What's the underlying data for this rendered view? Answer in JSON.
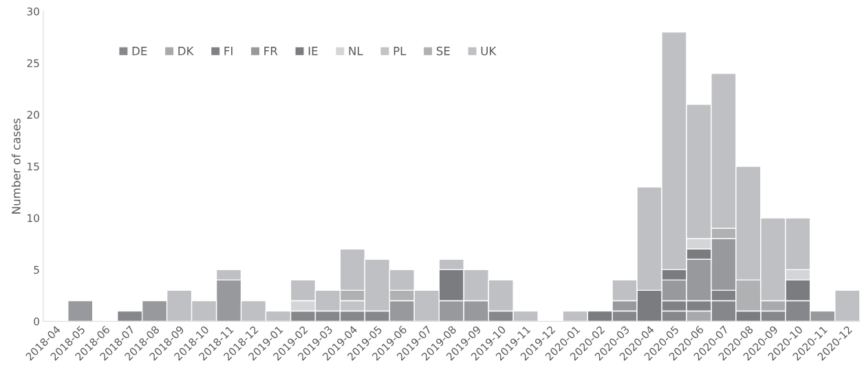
{
  "chart_data": {
    "type": "bar",
    "stacked": true,
    "ylabel": "Number of cases",
    "categories": [
      "2018-04",
      "2018-05",
      "2018-06",
      "2018-07",
      "2018-08",
      "2018-09",
      "2018-10",
      "2018-11",
      "2018-12",
      "2019-01",
      "2019-02",
      "2019-03",
      "2019-04",
      "2019-05",
      "2019-06",
      "2019-07",
      "2019-08",
      "2019-09",
      "2019-10",
      "2019-11",
      "2019-12",
      "2020-01",
      "2020-02",
      "2020-03",
      "2020-04",
      "2020-05",
      "2020-06",
      "2020-07",
      "2020-08",
      "2020-09",
      "2020-10",
      "2020-11",
      "2020-12"
    ],
    "series": [
      {
        "name": "DE",
        "color": "#86878a",
        "values": [
          0,
          0,
          0,
          1,
          0,
          0,
          0,
          0,
          0,
          0,
          1,
          1,
          1,
          1,
          0,
          0,
          0,
          0,
          1,
          0,
          0,
          0,
          0,
          1,
          0,
          1,
          0,
          2,
          0,
          1,
          2,
          0,
          0
        ]
      },
      {
        "name": "DK",
        "color": "#a8a9ab",
        "values": [
          0,
          0,
          0,
          0,
          0,
          0,
          0,
          0,
          0,
          0,
          0,
          0,
          0,
          0,
          0,
          0,
          0,
          0,
          0,
          0,
          0,
          0,
          0,
          0,
          0,
          0,
          1,
          0,
          0,
          1,
          0,
          0,
          0
        ]
      },
      {
        "name": "FI",
        "color": "#808184",
        "values": [
          0,
          0,
          0,
          0,
          0,
          0,
          0,
          0,
          0,
          0,
          0,
          0,
          0,
          0,
          0,
          0,
          0,
          0,
          0,
          0,
          0,
          0,
          0,
          0,
          0,
          1,
          1,
          1,
          0,
          0,
          0,
          0,
          0
        ]
      },
      {
        "name": "FR",
        "color": "#98999c",
        "values": [
          0,
          2,
          0,
          0,
          2,
          0,
          0,
          4,
          0,
          0,
          0,
          0,
          0,
          0,
          2,
          0,
          2,
          2,
          0,
          0,
          0,
          0,
          0,
          1,
          0,
          2,
          4,
          5,
          0,
          0,
          0,
          1,
          0
        ]
      },
      {
        "name": "IE",
        "color": "#7b7c80",
        "values": [
          0,
          0,
          0,
          0,
          0,
          0,
          0,
          0,
          0,
          0,
          0,
          0,
          0,
          0,
          0,
          0,
          3,
          0,
          0,
          0,
          0,
          0,
          1,
          0,
          3,
          1,
          1,
          0,
          1,
          0,
          2,
          0,
          0
        ]
      },
      {
        "name": "NL",
        "color": "#d4d5d6",
        "values": [
          0,
          0,
          0,
          0,
          0,
          0,
          0,
          0,
          0,
          0,
          1,
          0,
          0,
          0,
          0,
          0,
          0,
          0,
          0,
          0,
          0,
          0,
          0,
          0,
          0,
          0,
          1,
          0,
          0,
          0,
          1,
          0,
          0
        ]
      },
      {
        "name": "PL",
        "color": "#c2c3c5",
        "values": [
          0,
          0,
          0,
          0,
          0,
          0,
          0,
          0,
          0,
          0,
          0,
          0,
          1,
          0,
          0,
          0,
          0,
          0,
          0,
          0,
          0,
          0,
          0,
          0,
          0,
          0,
          0,
          0,
          0,
          0,
          0,
          0,
          0
        ]
      },
      {
        "name": "SE",
        "color": "#b0b1b3",
        "values": [
          0,
          0,
          0,
          0,
          0,
          0,
          0,
          0,
          0,
          0,
          0,
          0,
          1,
          0,
          1,
          0,
          0,
          0,
          0,
          0,
          0,
          0,
          0,
          0,
          0,
          0,
          0,
          1,
          3,
          0,
          0,
          0,
          0
        ]
      },
      {
        "name": "UK",
        "color": "#bfc0c3",
        "values": [
          0,
          0,
          0,
          0,
          0,
          3,
          2,
          1,
          2,
          1,
          2,
          2,
          4,
          5,
          2,
          3,
          1,
          3,
          3,
          1,
          0,
          1,
          0,
          2,
          10,
          23,
          13,
          15,
          11,
          8,
          5,
          0,
          3
        ]
      }
    ],
    "ylim": [
      0,
      30
    ],
    "yticks": [
      0,
      5,
      10,
      15,
      20,
      25,
      30
    ],
    "grid": false,
    "legend": "top left"
  }
}
